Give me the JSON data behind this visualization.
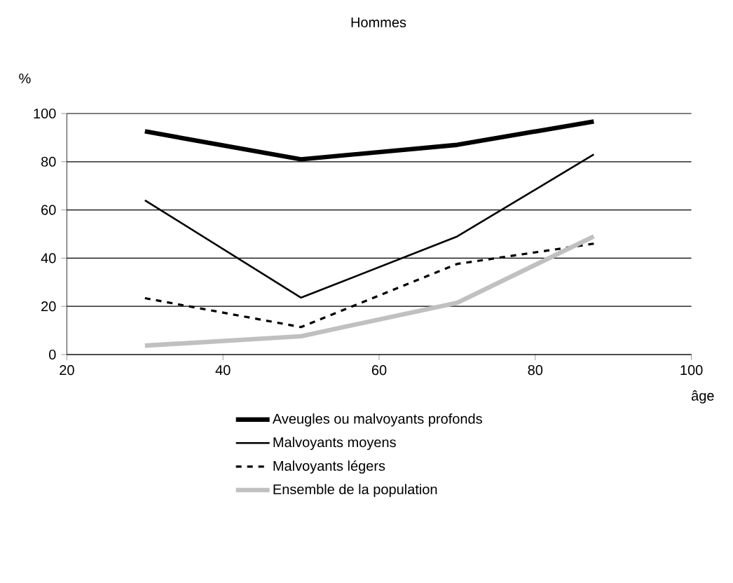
{
  "chart_data": {
    "type": "line",
    "title": "Hommes",
    "xlabel": "âge",
    "ylabel": "%",
    "x": [
      30,
      50,
      70,
      87.5
    ],
    "series": [
      {
        "name": "Aveugles ou malvoyants profonds",
        "color": "#000000",
        "line_style": "solid",
        "values": [
          92.6,
          81,
          87,
          96.7
        ]
      },
      {
        "name": "Malvoyants moyens",
        "color": "#000000",
        "line_style": "solid",
        "values": [
          64,
          23.6,
          49,
          83
        ]
      },
      {
        "name": "Malvoyants légers",
        "color": "#000000",
        "line_style": "dashed",
        "values": [
          23.4,
          11.4,
          37.6,
          46
        ]
      },
      {
        "name": "Ensemble de la population",
        "color": "#c0c0c0",
        "line_style": "solid",
        "values": [
          3.7,
          7.6,
          21.5,
          49
        ]
      }
    ],
    "xlim": [
      20,
      100
    ],
    "ylim": [
      0,
      100
    ],
    "xticks": [
      20,
      40,
      60,
      80,
      100
    ],
    "yticks": [
      0,
      20,
      40,
      60,
      80,
      100
    ],
    "grid": "y",
    "legend": "bottom",
    "marker": "none"
  }
}
